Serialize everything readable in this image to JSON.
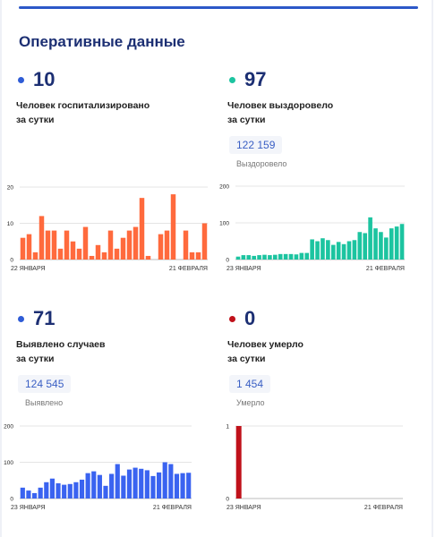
{
  "page": {
    "title": "Оперативные данные"
  },
  "cards": {
    "hospitalized": {
      "value": "10",
      "desc_line1": "Человек госпитализировано",
      "desc_line2": "за сутки",
      "dot_color": "#2f5cd6"
    },
    "recovered": {
      "value": "97",
      "desc_line1": "Человек выздоровело",
      "desc_line2": "за сутки",
      "total": "122 159",
      "total_label": "Выздоровело",
      "dot_color": "#1cc4a0"
    },
    "detected": {
      "value": "71",
      "desc_line1": "Выявлено случаев",
      "desc_line2": "за сутки",
      "total": "124 545",
      "total_label": "Выявлено",
      "dot_color": "#2f5cd6"
    },
    "died": {
      "value": "0",
      "desc_line1": "Человек умерло",
      "desc_line2": "за сутки",
      "total": "1 454",
      "total_label": "Умерло",
      "dot_color": "#c0111a"
    }
  },
  "chart_data": [
    {
      "type": "bar",
      "color": "#ff6a3d",
      "x_start_label": "22 ЯНВАРЯ",
      "x_end_label": "21 ФЕВРАЛЯ",
      "ylim": [
        0,
        20
      ],
      "y_ticks": [
        "0",
        "10",
        "20"
      ],
      "y_tick_values": [
        0,
        10,
        20
      ],
      "grid": true,
      "values": [
        6,
        7,
        2,
        12,
        8,
        8,
        3,
        8,
        5,
        3,
        9,
        1,
        4,
        2,
        8,
        3,
        6,
        8,
        9,
        17,
        1,
        0,
        7,
        8,
        18,
        0,
        8,
        2,
        2,
        10
      ]
    },
    {
      "type": "bar",
      "color": "#1cc4a0",
      "x_start_label": "23 ЯНВАРЯ",
      "x_end_label": "21 ФЕВРАЛЯ",
      "ylim": [
        0,
        200
      ],
      "y_ticks": [
        "0",
        "100",
        "200"
      ],
      "y_tick_values": [
        0,
        100,
        200
      ],
      "grid": true,
      "values": [
        8,
        12,
        12,
        10,
        12,
        13,
        12,
        13,
        15,
        15,
        15,
        14,
        18,
        18,
        55,
        50,
        58,
        53,
        40,
        48,
        42,
        50,
        53,
        75,
        72,
        115,
        85,
        75,
        60,
        85,
        90,
        97
      ]
    },
    {
      "type": "bar",
      "color": "#3a63f0",
      "x_start_label": "23 ЯНВАРЯ",
      "x_end_label": "21 ФЕВРАЛЯ",
      "ylim": [
        0,
        200
      ],
      "y_ticks": [
        "0",
        "100",
        "200"
      ],
      "y_tick_values": [
        0,
        100,
        200
      ],
      "grid": true,
      "values": [
        30,
        22,
        15,
        30,
        45,
        55,
        42,
        38,
        40,
        45,
        52,
        70,
        75,
        65,
        35,
        68,
        95,
        63,
        80,
        85,
        82,
        78,
        62,
        72,
        100,
        95,
        68,
        70,
        71
      ]
    },
    {
      "type": "bar",
      "color": "#c0111a",
      "x_start_label": "23 ЯНВАРЯ",
      "x_end_label": "21 ФЕВРАЛЯ",
      "ylim": [
        0,
        1
      ],
      "y_ticks": [
        "0",
        "1"
      ],
      "y_tick_values": [
        0,
        1
      ],
      "grid": true,
      "values": [
        1,
        0,
        0,
        0,
        0,
        0,
        0,
        0,
        0,
        0,
        0,
        0,
        0,
        0,
        0,
        0,
        0,
        0,
        0,
        0,
        0,
        0,
        0,
        0,
        0,
        0,
        0,
        0,
        0,
        0
      ]
    }
  ]
}
